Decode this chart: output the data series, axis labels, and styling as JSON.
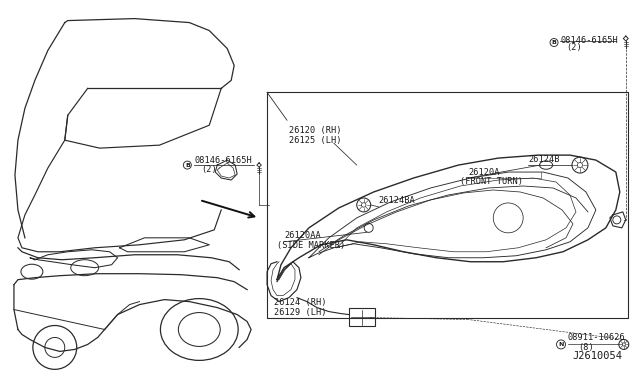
{
  "bg_color": "#ffffff",
  "line_color": "#2a2a2a",
  "text_color": "#1a1a1a",
  "fig_width": 6.4,
  "fig_height": 3.72,
  "dpi": 100,
  "diagram_id": "J2610054",
  "label_bolt_tr": "08146-6165H",
  "label_bolt_tr_qty": "(2)",
  "label_bolt_tr_prefix": "B",
  "label_26124B": "26124B",
  "label_26120A": "26120A",
  "label_26120A_note": "(FRONT TURN)",
  "label_26124BA": "26124BA",
  "label_26120AA": "26120AA",
  "label_26120AA_note": "(SIDE MARKER)",
  "label_26120_rh": "26120 (RH)",
  "label_26125_lh": "26125 (LH)",
  "label_bolt_l": "08146-6165H",
  "label_bolt_l_qty": "(2)",
  "label_bolt_l_prefix": "B",
  "label_26124_rh": "26124 (RH)",
  "label_26129_lh": "26129 (LH)",
  "label_nut": "08911-10626",
  "label_nut_qty": "(8)",
  "label_nut_prefix": "N"
}
